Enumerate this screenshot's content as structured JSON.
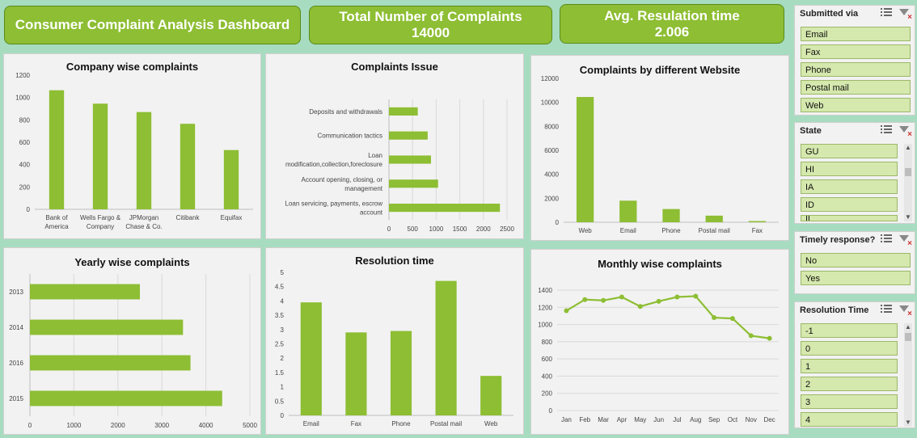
{
  "header": {
    "title": "Consumer Complaint Analysis Dashboard",
    "total_label": "Total Number of Complaints",
    "total_value": "14000",
    "avg_label": "Avg. Resulation time",
    "avg_value": "2.006"
  },
  "colors": {
    "bar": "#8dbe33",
    "header_bg": "#8dbe33",
    "background": "#a7dcc0",
    "slicer_item": "#d5e8ad"
  },
  "chart_data": [
    {
      "id": "company",
      "type": "bar",
      "title": "Company wise complaints",
      "categories": [
        "Bank of\nAmerica",
        "Wells Fargo &\nCompany",
        "JPMorgan\nChase & Co.",
        "Citibank",
        "Equifax"
      ],
      "values": [
        1065,
        945,
        870,
        765,
        530
      ],
      "ylim": [
        0,
        1200
      ],
      "yticks": [
        0,
        200,
        400,
        600,
        800,
        1000,
        1200
      ],
      "grid": false
    },
    {
      "id": "issue",
      "type": "bar",
      "orientation": "horizontal",
      "title": "Complaints Issue",
      "categories": [
        "Deposits and withdrawals",
        "Communication tactics",
        "Loan\nmodification,collection,foreclosure",
        "Account opening, closing, or\nmanagement",
        "Loan servicing, payments, escrow\naccount"
      ],
      "values": [
        610,
        820,
        890,
        1040,
        2350
      ],
      "xlim": [
        0,
        2500
      ],
      "xticks": [
        0,
        500,
        1000,
        1500,
        2000,
        2500
      ],
      "grid": true
    },
    {
      "id": "website",
      "type": "bar",
      "title": "Complaints by different Website",
      "categories": [
        "Web",
        "Email",
        "Phone",
        "Postal mail",
        "Fax"
      ],
      "values": [
        10450,
        1800,
        1100,
        550,
        100
      ],
      "ylim": [
        0,
        12000
      ],
      "yticks": [
        0,
        2000,
        4000,
        6000,
        8000,
        10000,
        12000
      ],
      "grid": false
    },
    {
      "id": "yearly",
      "type": "bar",
      "orientation": "horizontal",
      "title": "Yearly wise complaints",
      "categories": [
        "2013",
        "2014",
        "2016",
        "2015"
      ],
      "values": [
        2500,
        3480,
        3650,
        4370
      ],
      "xlim": [
        0,
        5000
      ],
      "xticks": [
        0,
        1000,
        2000,
        3000,
        4000,
        5000
      ],
      "grid": true
    },
    {
      "id": "resolution",
      "type": "bar",
      "title": "Resolution time",
      "categories": [
        "Email",
        "Fax",
        "Phone",
        "Postal mail",
        "Web"
      ],
      "values": [
        3.95,
        2.9,
        2.95,
        4.7,
        1.38
      ],
      "ylim": [
        0,
        5
      ],
      "yticks": [
        "0",
        "0.5",
        "1",
        "1.5",
        "2",
        "2.5",
        "3",
        "3.5",
        "4",
        "4.5",
        "5"
      ],
      "grid": false
    },
    {
      "id": "monthly",
      "type": "line",
      "title": "Monthly wise complaints",
      "categories": [
        "Jan",
        "Feb",
        "Mar",
        "Apr",
        "May",
        "Jun",
        "Jul",
        "Aug",
        "Sep",
        "Oct",
        "Nov",
        "Dec"
      ],
      "values": [
        1160,
        1290,
        1280,
        1320,
        1210,
        1270,
        1320,
        1330,
        1080,
        1070,
        870,
        840
      ],
      "ylim": [
        0,
        1400
      ],
      "yticks": [
        0,
        200,
        400,
        600,
        800,
        1000,
        1200,
        1400
      ],
      "grid": true
    }
  ],
  "slicers": {
    "submitted": {
      "title": "Submitted via",
      "items": [
        "Email",
        "Fax",
        "Phone",
        "Postal mail",
        "Web"
      ]
    },
    "state": {
      "title": "State",
      "items": [
        "GU",
        "HI",
        "IA",
        "ID",
        "IL"
      ]
    },
    "timely": {
      "title": "Timely response?",
      "items": [
        "No",
        "Yes"
      ]
    },
    "restime": {
      "title": "Resolution Time",
      "items": [
        "-1",
        "0",
        "1",
        "2",
        "3",
        "4"
      ]
    }
  }
}
